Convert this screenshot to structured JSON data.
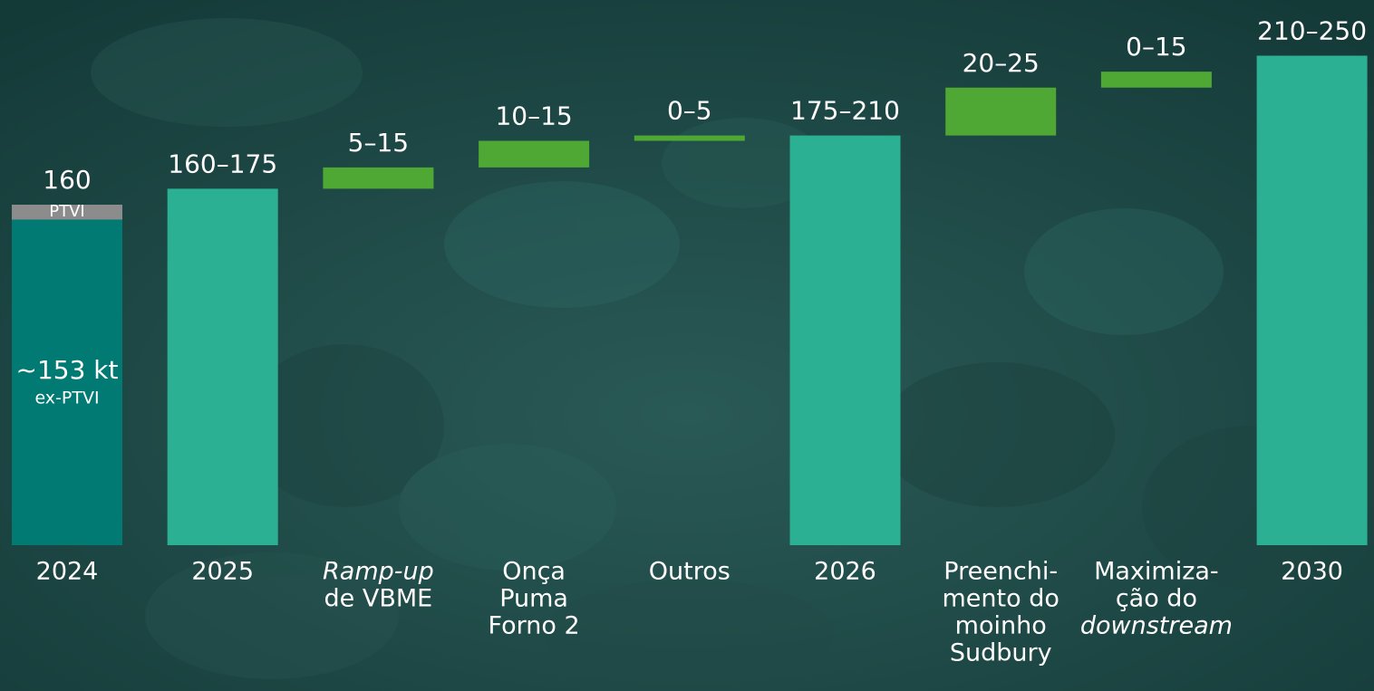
{
  "chart_data": {
    "type": "waterfall",
    "categories": [
      [
        "2024"
      ],
      [
        "2025"
      ],
      [
        {
          "text": "Ramp-up",
          "italic": true
        },
        "de VBME"
      ],
      [
        "Onça",
        "Puma",
        "Forno 2"
      ],
      [
        "Outros"
      ],
      [
        "2026"
      ],
      [
        "Preenchi-",
        "mento do",
        "moinho",
        "Sudbury"
      ],
      [
        "Maximiza-",
        "ção do",
        {
          "text": "downstream",
          "italic": true
        }
      ],
      [
        "2030"
      ]
    ],
    "kind": [
      "stack",
      "total",
      "delta",
      "delta",
      "delta",
      "total",
      "delta",
      "delta",
      "total"
    ],
    "low": [
      160,
      160,
      5,
      10,
      0,
      175,
      20,
      0,
      210
    ],
    "high": [
      160,
      175,
      15,
      15,
      5,
      210,
      25,
      15,
      250
    ],
    "value_labels": [
      "160",
      "160–175",
      "5–15",
      "10–15",
      "0–5",
      "175–210",
      "20–25",
      "0–15",
      "210–250"
    ],
    "stack": [
      {
        "name": "ex-PTVI",
        "value": 153,
        "label": "~153 kt",
        "color": "#007a72"
      },
      {
        "name": "PTVI",
        "value": 7,
        "color": "#8c8c8c"
      }
    ],
    "colors": {
      "total": "#2bb094",
      "delta": "#4ea833"
    }
  }
}
